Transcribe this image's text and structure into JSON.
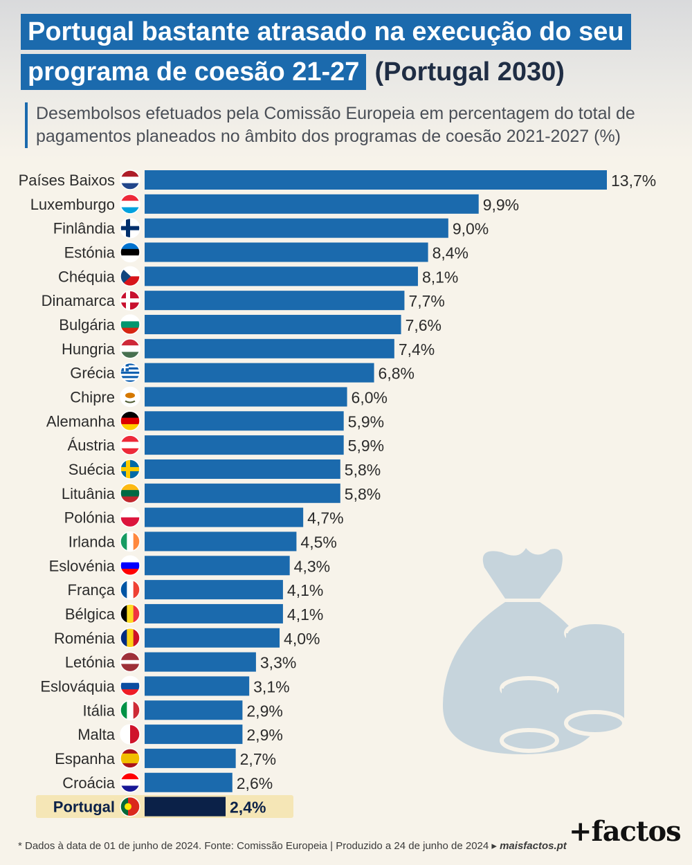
{
  "header": {
    "title_line1": "Portugal bastante atrasado na execução do seu",
    "title_line2": "programa de coesão 21-27",
    "title_extra": "(Portugal 2030)",
    "subtitle": "Desembolsos efetuados pela Comissão Europeia em percentagem do total de pagamentos planeados no âmbito dos programas de coesão 2021-2027 (%)"
  },
  "chart_data": {
    "type": "bar",
    "orientation": "horizontal",
    "title": "Portugal bastante atrasado na execução do seu programa de coesão 21-27 (Portugal 2030)",
    "unit": "%",
    "xlim": [
      0,
      13.7
    ],
    "highlight": "Portugal",
    "categories": [
      "Países Baixos",
      "Luxemburgo",
      "Finlândia",
      "Estónia",
      "Chéquia",
      "Dinamarca",
      "Bulgária",
      "Hungria",
      "Grécia",
      "Chipre",
      "Alemanha",
      "Áustria",
      "Suécia",
      "Lituânia",
      "Polónia",
      "Irlanda",
      "Eslovénia",
      "França",
      "Bélgica",
      "Roménia",
      "Letónia",
      "Eslováquia",
      "Itália",
      "Malta",
      "Espanha",
      "Croácia",
      "Portugal"
    ],
    "values": [
      13.7,
      9.9,
      9.0,
      8.4,
      8.1,
      7.7,
      7.6,
      7.4,
      6.8,
      6.0,
      5.9,
      5.9,
      5.8,
      5.8,
      4.7,
      4.5,
      4.3,
      4.1,
      4.1,
      4.0,
      3.3,
      3.1,
      2.9,
      2.9,
      2.7,
      2.6,
      2.4
    ],
    "labels": [
      "13,7%",
      "9,9%",
      "9,0%",
      "8,4%",
      "8,1%",
      "7,7%",
      "7,6%",
      "7,4%",
      "6,8%",
      "6,0%",
      "5,9%",
      "5,9%",
      "5,8%",
      "5,8%",
      "4,7%",
      "4,5%",
      "4,3%",
      "4,1%",
      "4,1%",
      "4,0%",
      "3,3%",
      "3,1%",
      "2,9%",
      "2,9%",
      "2,7%",
      "2,6%",
      "2,4%"
    ],
    "flags": [
      {
        "type": "h",
        "colors": [
          "#ae1c28",
          "#ffffff",
          "#21468b"
        ]
      },
      {
        "type": "h",
        "colors": [
          "#ed2939",
          "#ffffff",
          "#00a1de"
        ]
      },
      {
        "type": "nordic",
        "colors": [
          "#ffffff",
          "#002f6c"
        ]
      },
      {
        "type": "h",
        "colors": [
          "#0072ce",
          "#000000",
          "#ffffff"
        ]
      },
      {
        "type": "czech",
        "colors": [
          "#ffffff",
          "#d7141a",
          "#11457e"
        ]
      },
      {
        "type": "nordic",
        "colors": [
          "#c8102e",
          "#ffffff"
        ]
      },
      {
        "type": "h",
        "colors": [
          "#ffffff",
          "#00966e",
          "#d62612"
        ]
      },
      {
        "type": "h",
        "colors": [
          "#ce2939",
          "#ffffff",
          "#477050"
        ]
      },
      {
        "type": "greece",
        "colors": [
          "#0d5eaf",
          "#ffffff"
        ]
      },
      {
        "type": "cyprus",
        "colors": [
          "#ffffff",
          "#d57800",
          "#4e5b31"
        ]
      },
      {
        "type": "h",
        "colors": [
          "#000000",
          "#dd0000",
          "#ffce00"
        ]
      },
      {
        "type": "h",
        "colors": [
          "#ed2939",
          "#ffffff",
          "#ed2939"
        ]
      },
      {
        "type": "nordic",
        "colors": [
          "#006aa7",
          "#fecc00"
        ]
      },
      {
        "type": "h",
        "colors": [
          "#fdb913",
          "#006a44",
          "#c1272d"
        ]
      },
      {
        "type": "h",
        "colors": [
          "#ffffff",
          "#dc143c"
        ]
      },
      {
        "type": "v",
        "colors": [
          "#169b62",
          "#ffffff",
          "#ff883e"
        ]
      },
      {
        "type": "h",
        "colors": [
          "#ffffff",
          "#0000ff",
          "#ff0000"
        ]
      },
      {
        "type": "v",
        "colors": [
          "#0055a4",
          "#ffffff",
          "#ef4135"
        ]
      },
      {
        "type": "v",
        "colors": [
          "#000000",
          "#fdda24",
          "#ef3340"
        ]
      },
      {
        "type": "v",
        "colors": [
          "#002b7f",
          "#fcd116",
          "#ce1126"
        ]
      },
      {
        "type": "h3",
        "colors": [
          "#9e3039",
          "#ffffff",
          "#9e3039"
        ]
      },
      {
        "type": "h",
        "colors": [
          "#ffffff",
          "#0b4ea2",
          "#ee1c25"
        ]
      },
      {
        "type": "v",
        "colors": [
          "#009246",
          "#ffffff",
          "#ce2b37"
        ]
      },
      {
        "type": "v2",
        "colors": [
          "#ffffff",
          "#cf142b"
        ]
      },
      {
        "type": "spain",
        "colors": [
          "#aa151b",
          "#f1bf00",
          "#aa151b"
        ]
      },
      {
        "type": "h",
        "colors": [
          "#ff0000",
          "#ffffff",
          "#171796"
        ]
      },
      {
        "type": "portugal",
        "colors": [
          "#046a38",
          "#da291c",
          "#ffe900"
        ]
      }
    ],
    "bar_color": "#1b6aad",
    "highlight_bar_color": "#0b2148",
    "highlight_bg": "#f5e6b6"
  },
  "footer": {
    "note": "* Dados à data de 01 de junho de 2024. Fonte: Comissão Europeia | Produzido a 24 de junho de 2024 ▸ ",
    "source_site": "maisfactos.pt",
    "logo": "+factos"
  }
}
